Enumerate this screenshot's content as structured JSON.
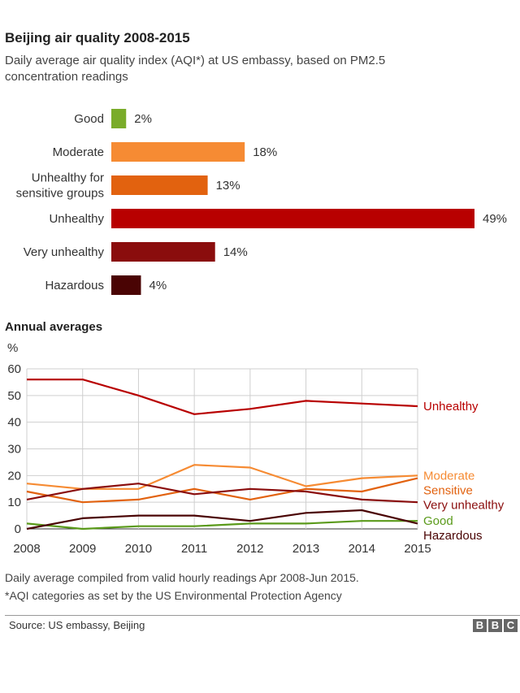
{
  "header": {
    "title": "Beijing air quality 2008-2015",
    "subtitle": "Daily average air quality index (AQI*) at US embassy, based on PM2.5 concentration readings",
    "section_title": "Annual averages"
  },
  "footer": {
    "note1": "Daily average compiled from valid hourly readings Apr 2008-Jun 2015.",
    "note2": "*AQI categories as set by the US Environmental Protection Agency",
    "source": "Source: US embassy, Beijing",
    "logo": [
      "B",
      "B",
      "C"
    ]
  },
  "chart_data": [
    {
      "type": "bar",
      "orientation": "horizontal",
      "title": "Beijing air quality 2008-2015",
      "categories": [
        "Good",
        "Moderate",
        "Unhealthy for sensitive groups",
        "Unhealthy",
        "Very unhealthy",
        "Hazardous"
      ],
      "category_lines": [
        [
          "Good"
        ],
        [
          "Moderate"
        ],
        [
          "Unhealthy for",
          "sensitive groups"
        ],
        [
          "Unhealthy"
        ],
        [
          "Very unhealthy"
        ],
        [
          "Hazardous"
        ]
      ],
      "values": [
        2,
        18,
        13,
        49,
        14,
        4
      ],
      "value_labels": [
        "2%",
        "18%",
        "13%",
        "49%",
        "14%",
        "4%"
      ],
      "colors": [
        "#7aac2a",
        "#f68b33",
        "#e2620f",
        "#b80000",
        "#8a0d0d",
        "#4a0404"
      ],
      "xlim": [
        0,
        49
      ]
    },
    {
      "type": "line",
      "title": "Annual averages",
      "ylabel": "%",
      "x": [
        2008,
        2009,
        2010,
        2011,
        2012,
        2013,
        2014,
        2015
      ],
      "ylim": [
        0,
        60
      ],
      "yticks": [
        0,
        10,
        20,
        30,
        40,
        50,
        60
      ],
      "grid": true,
      "series": [
        {
          "name": "Unhealthy",
          "color": "#b80000",
          "values": [
            56,
            56,
            50,
            43,
            45,
            48,
            47,
            46
          ]
        },
        {
          "name": "Moderate",
          "color": "#f68b33",
          "values": [
            17,
            15,
            15,
            24,
            23,
            16,
            19,
            20
          ]
        },
        {
          "name": "Sensitive",
          "color": "#e2620f",
          "values": [
            14,
            10,
            11,
            15,
            11,
            15,
            14,
            19
          ]
        },
        {
          "name": "Very unhealthy",
          "color": "#8a0d0d",
          "values": [
            11,
            15,
            17,
            13,
            15,
            14,
            11,
            10
          ]
        },
        {
          "name": "Good",
          "color": "#5a9a1a",
          "values": [
            2,
            0,
            1,
            1,
            2,
            2,
            3,
            3
          ]
        },
        {
          "name": "Hazardous",
          "color": "#4a0404",
          "values": [
            0,
            4,
            5,
            5,
            3,
            6,
            7,
            2
          ]
        }
      ]
    }
  ]
}
